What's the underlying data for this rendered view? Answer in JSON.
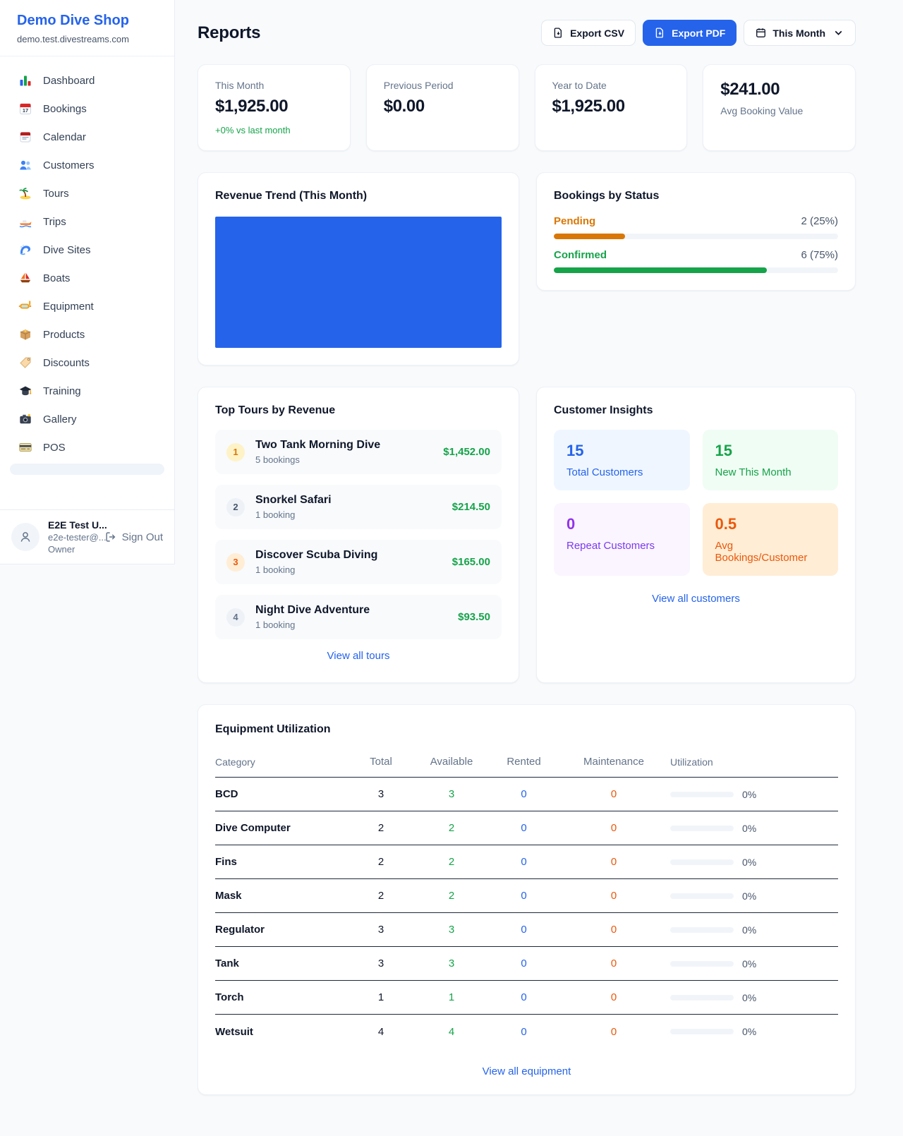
{
  "sidebar": {
    "brand": "Demo Dive Shop",
    "domain": "demo.test.divestreams.com",
    "items": [
      {
        "label": "Dashboard",
        "icon": "dashboard-icon"
      },
      {
        "label": "Bookings",
        "icon": "bookings-calendar-icon"
      },
      {
        "label": "Calendar",
        "icon": "calendar-icon"
      },
      {
        "label": "Customers",
        "icon": "customers-icon"
      },
      {
        "label": "Tours",
        "icon": "island-icon"
      },
      {
        "label": "Trips",
        "icon": "speedboat-icon"
      },
      {
        "label": "Dive Sites",
        "icon": "wave-icon"
      },
      {
        "label": "Boats",
        "icon": "sailboat-icon"
      },
      {
        "label": "Equipment",
        "icon": "dive-mask-icon"
      },
      {
        "label": "Products",
        "icon": "package-icon"
      },
      {
        "label": "Discounts",
        "icon": "tag-icon"
      },
      {
        "label": "Training",
        "icon": "graduation-cap-icon"
      },
      {
        "label": "Gallery",
        "icon": "camera-icon"
      },
      {
        "label": "POS",
        "icon": "credit-card-icon"
      }
    ],
    "user": {
      "name": "E2E Test U...",
      "email": "e2e-tester@...",
      "role": "Owner",
      "sign_out": "Sign Out"
    }
  },
  "header": {
    "title": "Reports",
    "export_csv": "Export CSV",
    "export_pdf": "Export PDF",
    "period": "This Month"
  },
  "stats": [
    {
      "label": "This Month",
      "value": "$1,925.00",
      "delta": "+0% vs last month"
    },
    {
      "label": "Previous Period",
      "value": "$0.00"
    },
    {
      "label": "Year to Date",
      "value": "$1,925.00"
    },
    {
      "label": "Avg Booking Value",
      "value": "$241.00",
      "value_first": true
    }
  ],
  "revenue_trend": {
    "title": "Revenue Trend (This Month)",
    "fill_color": "#2563eb"
  },
  "bookings_by_status": {
    "title": "Bookings by Status",
    "rows": [
      {
        "label": "Pending",
        "value": "2 (25%)",
        "pct": 25,
        "color": "#d97706"
      },
      {
        "label": "Confirmed",
        "value": "6 (75%)",
        "pct": 75,
        "color": "#16a34a"
      }
    ]
  },
  "chart_data": [
    {
      "type": "area",
      "title": "Revenue Trend (This Month)",
      "note": "rendered as a solid filled block",
      "fill_color": "#2563eb"
    },
    {
      "type": "bar",
      "title": "Bookings by Status",
      "categories": [
        "Pending",
        "Confirmed"
      ],
      "values": [
        2,
        6
      ],
      "value_labels": [
        "2 (25%)",
        "6 (75%)"
      ],
      "percentages": [
        25,
        75
      ]
    }
  ],
  "top_tours": {
    "title": "Top Tours by Revenue",
    "items": [
      {
        "rank": "1",
        "name": "Two Tank Morning Dive",
        "bookings": "5 bookings",
        "revenue": "$1,452.00"
      },
      {
        "rank": "2",
        "name": "Snorkel Safari",
        "bookings": "1 booking",
        "revenue": "$214.50"
      },
      {
        "rank": "3",
        "name": "Discover Scuba Diving",
        "bookings": "1 booking",
        "revenue": "$165.00"
      },
      {
        "rank": "4",
        "name": "Night Dive Adventure",
        "bookings": "1 booking",
        "revenue": "$93.50"
      }
    ],
    "view_all": "View all tours"
  },
  "customer_insights": {
    "title": "Customer Insights",
    "tiles": [
      {
        "value": "15",
        "label": "Total Customers",
        "theme": "blue"
      },
      {
        "value": "15",
        "label": "New This Month",
        "theme": "green"
      },
      {
        "value": "0",
        "label": "Repeat Customers",
        "theme": "purple"
      },
      {
        "value": "0.5",
        "label": "Avg Bookings/Customer",
        "theme": "orange"
      }
    ],
    "view_all": "View all customers"
  },
  "equipment": {
    "title": "Equipment Utilization",
    "columns": [
      "Category",
      "Total",
      "Available",
      "Rented",
      "Maintenance",
      "Utilization"
    ],
    "rows": [
      [
        "BCD",
        "3",
        "3",
        "0",
        "0",
        "0%"
      ],
      [
        "Dive Computer",
        "2",
        "2",
        "0",
        "0",
        "0%"
      ],
      [
        "Fins",
        "2",
        "2",
        "0",
        "0",
        "0%"
      ],
      [
        "Mask",
        "2",
        "2",
        "0",
        "0",
        "0%"
      ],
      [
        "Regulator",
        "3",
        "3",
        "0",
        "0",
        "0%"
      ],
      [
        "Tank",
        "3",
        "3",
        "0",
        "0",
        "0%"
      ],
      [
        "Torch",
        "1",
        "1",
        "0",
        "0",
        "0%"
      ],
      [
        "Wetsuit",
        "4",
        "4",
        "0",
        "0",
        "0%"
      ]
    ],
    "view_all": "View all equipment"
  },
  "colors": {
    "accent_blue": "#2563eb",
    "green": "#16a34a",
    "pending_orange": "#d97706",
    "maintenance_orange": "#ea580c"
  }
}
